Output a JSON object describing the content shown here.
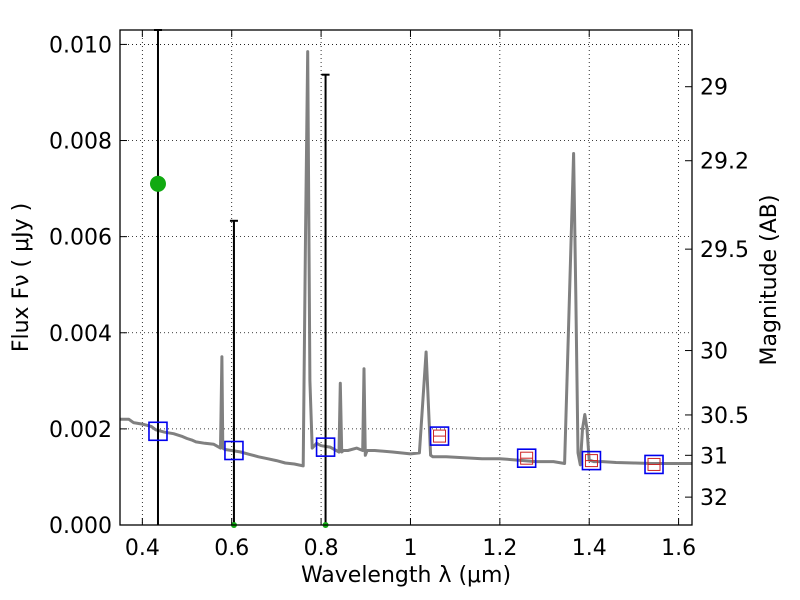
{
  "chart_data": {
    "type": "line",
    "xlabel": "Wavelength  λ (μm)",
    "ylabel": "Flux  Fν  ( μJy )",
    "ylabel_right": "Magnitude (AB)",
    "xlim": [
      0.35,
      1.63
    ],
    "ylim": [
      0.0,
      0.0103
    ],
    "grid": true,
    "x_ticks": [
      0.4,
      0.6,
      0.8,
      1.0,
      1.2,
      1.4,
      1.6
    ],
    "x_tick_labels": [
      "0.4",
      "0.6",
      "0.8",
      "1",
      "1.2",
      "1.4",
      "1.6"
    ],
    "y_ticks": [
      0.0,
      0.002,
      0.004,
      0.006,
      0.008,
      0.01
    ],
    "y_tick_labels": [
      "0.000",
      "0.002",
      "0.004",
      "0.006",
      "0.008",
      "0.010"
    ],
    "right_ticks": [
      {
        "flux": 0.00912,
        "label": "29"
      },
      {
        "flux": 0.00758,
        "label": "29.2"
      },
      {
        "flux": 0.00574,
        "label": "29.5"
      },
      {
        "flux": 0.00363,
        "label": "30"
      },
      {
        "flux": 0.00229,
        "label": "30.5"
      },
      {
        "flux": 0.00145,
        "label": "31"
      },
      {
        "flux": 0.00058,
        "label": "32"
      }
    ],
    "series": [
      {
        "style": "spectrum",
        "color": "#808080",
        "x": [
          0.35,
          0.37,
          0.38,
          0.4,
          0.42,
          0.43,
          0.45,
          0.47,
          0.49,
          0.5,
          0.51,
          0.52,
          0.54,
          0.56,
          0.575,
          0.578,
          0.58,
          0.585,
          0.6,
          0.62,
          0.64,
          0.66,
          0.68,
          0.7,
          0.72,
          0.74,
          0.76,
          0.765,
          0.77,
          0.775,
          0.78,
          0.79,
          0.8,
          0.82,
          0.84,
          0.843,
          0.846,
          0.85,
          0.86,
          0.88,
          0.893,
          0.896,
          0.899,
          0.903,
          0.92,
          0.96,
          1.0,
          1.02,
          1.035,
          1.045,
          1.05,
          1.08,
          1.12,
          1.16,
          1.2,
          1.24,
          1.28,
          1.32,
          1.345,
          1.355,
          1.365,
          1.37,
          1.375,
          1.38,
          1.385,
          1.39,
          1.395,
          1.4,
          1.41,
          1.43,
          1.46,
          1.5,
          1.54,
          1.58,
          1.63
        ],
        "y": [
          0.0022,
          0.0022,
          0.00213,
          0.0021,
          0.00205,
          0.00198,
          0.00193,
          0.0019,
          0.00184,
          0.0018,
          0.00177,
          0.00173,
          0.0017,
          0.00168,
          0.0016,
          0.0035,
          0.0016,
          0.00157,
          0.00155,
          0.00152,
          0.00147,
          0.00142,
          0.00138,
          0.00134,
          0.00129,
          0.00127,
          0.00123,
          0.006,
          0.00985,
          0.003,
          0.0016,
          0.0017,
          0.00165,
          0.00162,
          0.00152,
          0.00295,
          0.00152,
          0.00155,
          0.00155,
          0.0016,
          0.00155,
          0.00325,
          0.00145,
          0.00155,
          0.00155,
          0.00152,
          0.00148,
          0.0015,
          0.0036,
          0.00145,
          0.00142,
          0.00142,
          0.0014,
          0.00138,
          0.00138,
          0.00135,
          0.00132,
          0.00132,
          0.00128,
          0.0045,
          0.00773,
          0.0048,
          0.0015,
          0.00125,
          0.002,
          0.0023,
          0.002,
          0.00135,
          0.00132,
          0.00132,
          0.0013,
          0.00129,
          0.00128,
          0.00128,
          0.00128
        ]
      },
      {
        "style": "model-photometry",
        "color": "#0000ee",
        "x": [
          0.435,
          0.605,
          0.81,
          1.065,
          1.26,
          1.405,
          1.545
        ],
        "y": [
          0.00195,
          0.00155,
          0.00162,
          0.00185,
          0.00139,
          0.00134,
          0.00126
        ]
      },
      {
        "style": "filter-markers",
        "color": "#cc2222",
        "x": [
          1.065,
          1.26,
          1.405,
          1.545
        ],
        "y": [
          0.00185,
          0.00139,
          0.00134,
          0.00126
        ]
      },
      {
        "style": "observed-photometry",
        "color": "#11aa11",
        "points": [
          {
            "x": 0.435,
            "y": 0.0071,
            "ylo": 0.0,
            "yhi": 0.0103
          },
          {
            "x": 0.605,
            "y": 0.0,
            "ylo": 0.0,
            "yhi": 0.00633
          },
          {
            "x": 0.81,
            "y": 0.0,
            "ylo": 0.0,
            "yhi": 0.00937
          }
        ]
      }
    ]
  }
}
